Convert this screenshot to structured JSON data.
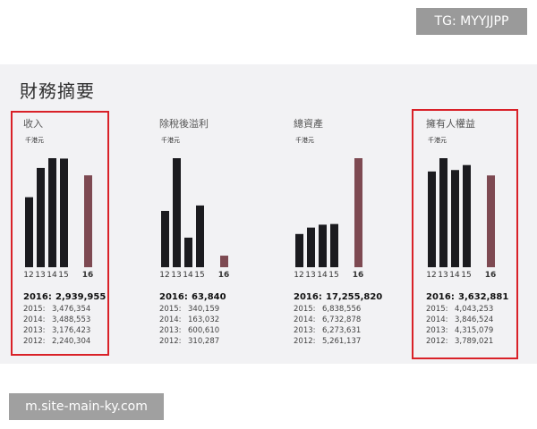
{
  "watermark_tag": "TG: MYYJJPP",
  "page_title": "財務摘要",
  "footer_url": "m.site-main-ky.com",
  "colors": {
    "bar": "#1b1b1f",
    "highlight_bar": "#7e4a52",
    "highlight_box": "#d92128"
  },
  "chart_data": [
    {
      "type": "bar",
      "title": "收入",
      "unit": "千港元",
      "categories": [
        "12",
        "13",
        "14",
        "15",
        "16"
      ],
      "values": [
        2240304,
        3176423,
        3488553,
        3476354,
        2939955
      ],
      "highlight_category": "16",
      "highlighted": true,
      "summary": [
        {
          "year": "2016:",
          "value": "2,939,955"
        },
        {
          "year": "2015:",
          "value": "3,476,354"
        },
        {
          "year": "2014:",
          "value": "3,488,553"
        },
        {
          "year": "2013:",
          "value": "3,176,423"
        },
        {
          "year": "2012:",
          "value": "2,240,304"
        }
      ]
    },
    {
      "type": "bar",
      "title": "除稅後溢利",
      "unit": "千港元",
      "categories": [
        "12",
        "13",
        "14",
        "15",
        "16"
      ],
      "values": [
        310287,
        600610,
        163032,
        340159,
        63840
      ],
      "highlight_category": "16",
      "highlighted": false,
      "summary": [
        {
          "year": "2016:",
          "value": "63,840"
        },
        {
          "year": "2015:",
          "value": "340,159"
        },
        {
          "year": "2014:",
          "value": "163,032"
        },
        {
          "year": "2013:",
          "value": "600,610"
        },
        {
          "year": "2012:",
          "value": "310,287"
        }
      ]
    },
    {
      "type": "bar",
      "title": "總資產",
      "unit": "千港元",
      "categories": [
        "12",
        "13",
        "14",
        "15",
        "16"
      ],
      "values": [
        5261137,
        6273631,
        6732878,
        6838556,
        17255820
      ],
      "highlight_category": "16",
      "highlighted": false,
      "summary": [
        {
          "year": "2016:",
          "value": "17,255,820"
        },
        {
          "year": "2015:",
          "value": "6,838,556"
        },
        {
          "year": "2014:",
          "value": "6,732,878"
        },
        {
          "year": "2013:",
          "value": "6,273,631"
        },
        {
          "year": "2012:",
          "value": "5,261,137"
        }
      ]
    },
    {
      "type": "bar",
      "title": "擁有人權益",
      "unit": "千港元",
      "categories": [
        "12",
        "13",
        "14",
        "15",
        "16"
      ],
      "values": [
        3789021,
        4315079,
        3846524,
        4043253,
        3632881
      ],
      "highlight_category": "16",
      "highlighted": true,
      "summary": [
        {
          "year": "2016:",
          "value": "3,632,881"
        },
        {
          "year": "2015:",
          "value": "4,043,253"
        },
        {
          "year": "2014:",
          "value": "3,846,524"
        },
        {
          "year": "2013:",
          "value": "4,315,079"
        },
        {
          "year": "2012:",
          "value": "3,789,021"
        }
      ]
    }
  ]
}
